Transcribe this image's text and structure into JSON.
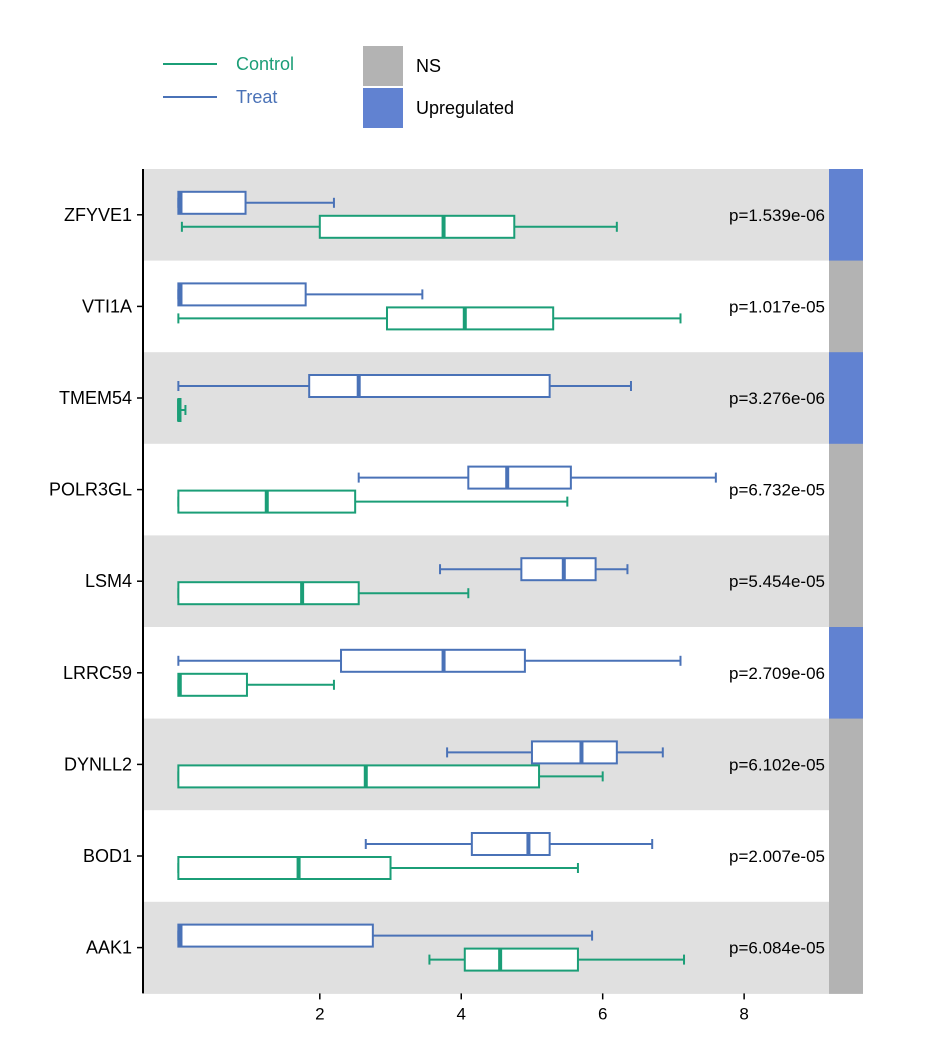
{
  "chart_data": {
    "type": "boxplot",
    "orientation": "horizontal",
    "xlim": [
      -0.5,
      9.2
    ],
    "xticks": [
      2,
      4,
      6,
      8
    ],
    "colors": {
      "Control": "#1b9e77",
      "Treat": "#4a72b7",
      "NS": "#b3b3b3",
      "Upregulated": "#6182d1",
      "band_dark": "#e0e0e0",
      "band_light": "#ffffff"
    },
    "legend": {
      "groups": [
        {
          "name": "Control",
          "color": "#1b9e77"
        },
        {
          "name": "Treat",
          "color": "#4a72b7"
        }
      ],
      "status": [
        {
          "name": "NS",
          "color": "#b3b3b3"
        },
        {
          "name": "Upregulated",
          "color": "#6182d1"
        }
      ]
    },
    "genes": [
      {
        "name": "ZFYVE1",
        "pvalue": "p=1.539e-06",
        "status": "Upregulated",
        "Treat": {
          "min": 0.0,
          "q1": 0.0,
          "median": 0.03,
          "q3": 0.95,
          "max": 2.2
        },
        "Control": {
          "min": 0.05,
          "q1": 2.0,
          "median": 3.75,
          "q3": 4.75,
          "max": 6.2
        }
      },
      {
        "name": "VTI1A",
        "pvalue": "p=1.017e-05",
        "status": "NS",
        "Treat": {
          "min": 0.0,
          "q1": 0.0,
          "median": 0.03,
          "q3": 1.8,
          "max": 3.45
        },
        "Control": {
          "min": 0.0,
          "q1": 2.95,
          "median": 4.05,
          "q3": 5.3,
          "max": 7.1
        }
      },
      {
        "name": "TMEM54",
        "pvalue": "p=3.276e-06",
        "status": "Upregulated",
        "Treat": {
          "min": 0.0,
          "q1": 1.85,
          "median": 2.55,
          "q3": 5.25,
          "max": 6.4
        },
        "Control": {
          "min": 0.0,
          "q1": 0.0,
          "median": 0.01,
          "q3": 0.03,
          "max": 0.1
        }
      },
      {
        "name": "POLR3GL",
        "pvalue": "p=6.732e-05",
        "status": "NS",
        "Treat": {
          "min": 2.55,
          "q1": 4.1,
          "median": 4.65,
          "q3": 5.55,
          "max": 7.6
        },
        "Control": {
          "min": 0.0,
          "q1": 0.0,
          "median": 1.25,
          "q3": 2.5,
          "max": 5.5
        }
      },
      {
        "name": "LSM4",
        "pvalue": "p=5.454e-05",
        "status": "NS",
        "Treat": {
          "min": 3.7,
          "q1": 4.85,
          "median": 5.45,
          "q3": 5.9,
          "max": 6.35
        },
        "Control": {
          "min": 0.0,
          "q1": 0.0,
          "median": 1.75,
          "q3": 2.55,
          "max": 4.1
        }
      },
      {
        "name": "LRRC59",
        "pvalue": "p=2.709e-06",
        "status": "Upregulated",
        "Treat": {
          "min": 0.0,
          "q1": 2.3,
          "median": 3.75,
          "q3": 4.9,
          "max": 7.1
        },
        "Control": {
          "min": 0.0,
          "q1": 0.0,
          "median": 0.02,
          "q3": 0.97,
          "max": 2.2
        }
      },
      {
        "name": "DYNLL2",
        "pvalue": "p=6.102e-05",
        "status": "NS",
        "Treat": {
          "min": 3.8,
          "q1": 5.0,
          "median": 5.7,
          "q3": 6.2,
          "max": 6.85
        },
        "Control": {
          "min": 0.0,
          "q1": 0.0,
          "median": 2.65,
          "q3": 5.1,
          "max": 6.0
        }
      },
      {
        "name": "BOD1",
        "pvalue": "p=2.007e-05",
        "status": "NS",
        "Treat": {
          "min": 2.65,
          "q1": 4.15,
          "median": 4.95,
          "q3": 5.25,
          "max": 6.7
        },
        "Control": {
          "min": 0.0,
          "q1": 0.0,
          "median": 1.7,
          "q3": 3.0,
          "max": 5.65
        }
      },
      {
        "name": "AAK1",
        "pvalue": "p=6.084e-05",
        "status": "NS",
        "Treat": {
          "min": 0.0,
          "q1": 0.0,
          "median": 0.03,
          "q3": 2.75,
          "max": 5.85
        },
        "Control": {
          "min": 3.55,
          "q1": 4.05,
          "median": 4.55,
          "q3": 5.65,
          "max": 7.15
        }
      }
    ]
  }
}
